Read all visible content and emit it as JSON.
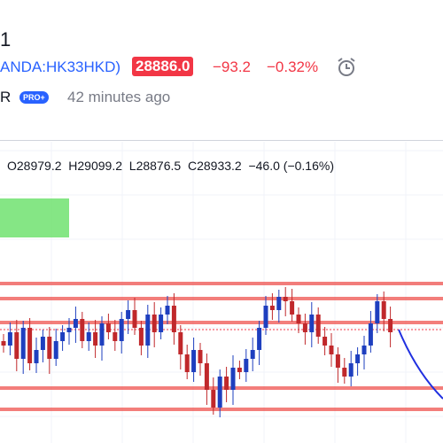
{
  "header": {
    "title_fragment": "1",
    "symbol": "ANDA:HK33HKD)",
    "price": "28886.0",
    "change": "−93.2",
    "change_percent": "−0.32%",
    "author_fragment": "R",
    "badge": "PRO+",
    "published": "42 minutes ago"
  },
  "ohlc": {
    "open": "O28979.2",
    "high": "H29099.2",
    "low": "L28876.5",
    "close": "C28933.2",
    "change": "−46.0 (−0.16%)"
  }
}
